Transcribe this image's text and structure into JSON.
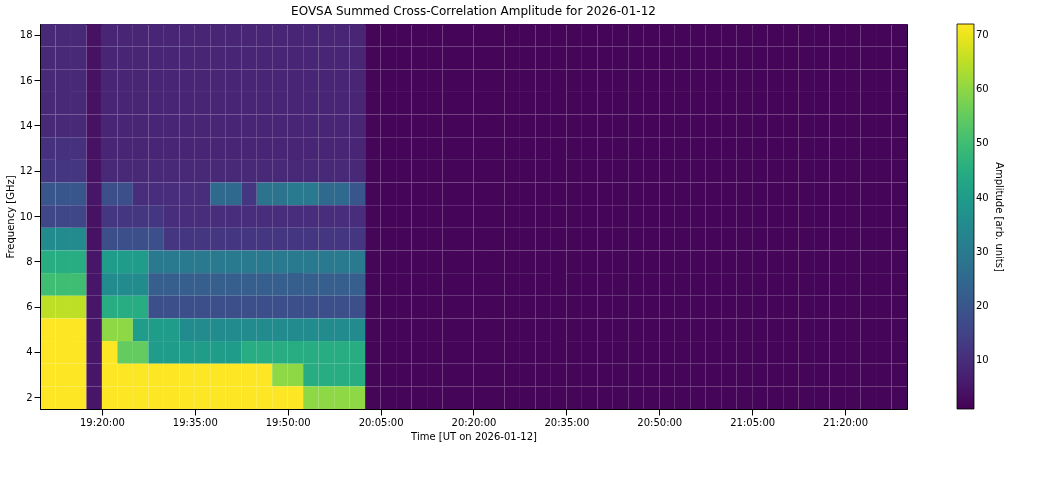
{
  "chart_data": {
    "type": "heatmap",
    "title": "EOVSA Summed Cross-Correlation Amplitude for 2026-01-12",
    "xlabel": "Time [UT on 2026-01-12]",
    "ylabel": "Frequency [GHz]",
    "clabel": "Amplitude [arb. units]",
    "x": [
      19.1875,
      19.2292,
      19.2708,
      19.3125,
      19.3542,
      19.3958,
      19.4375,
      19.4792,
      19.5208,
      19.5625,
      19.6042,
      19.6458,
      19.6875,
      19.7292,
      19.7708,
      19.8125,
      19.8542,
      19.8958,
      19.9375,
      19.9792,
      20.0208,
      20.0625,
      20.1042,
      20.1458,
      20.1875,
      20.2292,
      20.2708,
      20.3125,
      20.3542,
      20.3958,
      20.4375,
      20.4792,
      20.5208,
      20.5625,
      20.6042,
      20.6458,
      20.6875,
      20.7292,
      20.7708,
      20.8125,
      20.8542,
      20.8958,
      20.9375,
      20.9792,
      21.0208,
      21.0625,
      21.1042,
      21.1458,
      21.1875,
      21.2292,
      21.2708,
      21.3125,
      21.3542,
      21.3958,
      21.4375,
      21.4792
    ],
    "y_categories": [
      "18",
      null,
      "16",
      null,
      "14",
      null,
      "12",
      null,
      "10",
      null,
      "8",
      null,
      "6",
      null,
      "4",
      null,
      "2"
    ],
    "cells": [
      [
        9,
        9,
        9,
        4,
        8,
        8,
        8,
        8,
        8,
        8,
        8,
        8,
        8,
        8,
        8,
        8,
        8,
        8,
        8,
        8,
        8,
        2,
        2,
        2,
        2,
        2,
        2,
        2,
        2,
        2,
        2,
        2,
        2,
        2,
        2,
        2,
        2,
        2,
        2,
        2,
        2,
        2,
        2,
        2,
        2,
        2,
        2,
        2,
        2,
        2,
        2,
        2,
        2,
        2,
        2,
        2
      ],
      [
        9,
        9,
        9,
        4,
        8,
        8,
        8,
        8,
        8,
        8,
        8,
        8,
        8,
        8,
        8,
        8,
        8,
        8,
        8,
        8,
        8,
        2,
        2,
        2,
        2,
        2,
        2,
        2,
        2,
        2,
        2,
        2,
        2,
        2,
        2,
        2,
        2,
        2,
        2,
        2,
        2,
        2,
        2,
        2,
        2,
        2,
        2,
        2,
        2,
        2,
        2,
        2,
        2,
        2,
        2,
        2
      ],
      [
        9,
        9,
        9,
        4,
        8,
        8,
        8,
        8,
        8,
        8,
        8,
        8,
        8,
        8,
        8,
        8,
        8,
        8,
        8,
        8,
        8,
        2,
        2,
        2,
        2,
        2,
        2,
        2,
        2,
        2,
        2,
        2,
        2,
        2,
        2,
        2,
        2,
        2,
        2,
        2,
        2,
        2,
        2,
        2,
        2,
        2,
        2,
        2,
        2,
        2,
        2,
        2,
        2,
        2,
        2,
        2
      ],
      [
        9,
        9,
        9,
        4,
        8,
        8,
        8,
        8,
        8,
        8,
        8,
        8,
        8,
        8,
        8,
        8,
        8,
        8,
        8,
        8,
        8,
        2,
        2,
        2,
        2,
        2,
        2,
        2,
        2,
        2,
        2,
        2,
        2,
        2,
        2,
        2,
        2,
        2,
        2,
        2,
        2,
        2,
        2,
        2,
        2,
        2,
        2,
        2,
        2,
        2,
        2,
        2,
        2,
        2,
        2,
        2
      ],
      [
        9,
        9,
        9,
        4,
        8,
        8,
        8,
        8,
        8,
        8,
        8,
        8,
        8,
        8,
        8,
        8,
        8,
        8,
        8,
        8,
        8,
        2,
        2,
        2,
        2,
        2,
        2,
        2,
        2,
        2,
        2,
        2,
        2,
        2,
        2,
        2,
        2,
        2,
        2,
        2,
        2,
        2,
        2,
        2,
        2,
        2,
        2,
        2,
        2,
        2,
        2,
        2,
        2,
        2,
        2,
        2
      ],
      [
        11,
        11,
        11,
        4,
        8,
        8,
        8,
        8,
        8,
        8,
        8,
        8,
        8,
        8,
        8,
        8,
        8,
        8,
        8,
        8,
        8,
        2,
        2,
        2,
        2,
        2,
        2,
        2,
        2,
        2,
        2,
        2,
        2,
        2,
        2,
        2,
        2,
        2,
        2,
        2,
        2,
        2,
        2,
        2,
        2,
        2,
        2,
        2,
        2,
        2,
        2,
        2,
        2,
        2,
        2,
        2
      ],
      [
        12,
        12,
        12,
        4,
        9,
        9,
        9,
        9,
        9,
        9,
        9,
        9,
        9,
        9,
        9,
        9,
        9,
        9,
        9,
        9,
        9,
        2,
        2,
        2,
        2,
        2,
        2,
        2,
        2,
        2,
        2,
        2,
        2,
        2,
        2,
        2,
        2,
        2,
        2,
        2,
        2,
        2,
        2,
        2,
        2,
        2,
        2,
        2,
        2,
        2,
        2,
        2,
        2,
        2,
        2,
        2
      ],
      [
        20,
        20,
        20,
        5,
        18,
        18,
        10,
        10,
        10,
        10,
        10,
        25,
        25,
        12,
        28,
        28,
        30,
        30,
        25,
        25,
        20,
        2,
        2,
        2,
        2,
        2,
        2,
        2,
        2,
        2,
        2,
        2,
        2,
        2,
        2,
        2,
        2,
        2,
        2,
        2,
        2,
        2,
        2,
        2,
        2,
        2,
        2,
        2,
        2,
        2,
        2,
        2,
        2,
        2,
        2,
        2
      ],
      [
        16,
        16,
        16,
        4,
        12,
        12,
        12,
        12,
        10,
        10,
        10,
        10,
        10,
        10,
        10,
        10,
        10,
        10,
        10,
        10,
        10,
        2,
        2,
        2,
        2,
        2,
        2,
        2,
        2,
        2,
        2,
        2,
        2,
        2,
        2,
        2,
        2,
        2,
        2,
        2,
        2,
        2,
        2,
        2,
        2,
        2,
        2,
        2,
        2,
        2,
        2,
        2,
        2,
        2,
        2,
        2
      ],
      [
        35,
        35,
        35,
        4,
        18,
        18,
        18,
        18,
        12,
        12,
        12,
        12,
        12,
        12,
        12,
        12,
        12,
        12,
        12,
        12,
        12,
        2,
        2,
        2,
        2,
        2,
        2,
        2,
        2,
        2,
        2,
        2,
        2,
        2,
        2,
        2,
        2,
        2,
        2,
        2,
        2,
        2,
        2,
        2,
        2,
        2,
        2,
        2,
        2,
        2,
        2,
        2,
        2,
        2,
        2,
        2
      ],
      [
        45,
        45,
        45,
        5,
        40,
        40,
        40,
        30,
        30,
        30,
        30,
        30,
        30,
        30,
        30,
        30,
        30,
        30,
        30,
        30,
        30,
        2,
        2,
        2,
        2,
        2,
        2,
        2,
        2,
        2,
        2,
        2,
        2,
        2,
        2,
        2,
        2,
        2,
        2,
        2,
        2,
        2,
        2,
        2,
        2,
        2,
        2,
        2,
        2,
        2,
        2,
        2,
        2,
        2,
        2,
        2
      ],
      [
        50,
        50,
        50,
        5,
        35,
        35,
        35,
        22,
        22,
        22,
        22,
        22,
        22,
        22,
        22,
        22,
        22,
        22,
        22,
        22,
        22,
        2,
        2,
        2,
        2,
        2,
        2,
        2,
        2,
        2,
        2,
        2,
        2,
        2,
        2,
        2,
        2,
        2,
        2,
        2,
        2,
        2,
        2,
        2,
        2,
        2,
        2,
        2,
        2,
        2,
        2,
        2,
        2,
        2,
        2,
        2
      ],
      [
        65,
        65,
        65,
        5,
        45,
        45,
        45,
        18,
        18,
        18,
        18,
        18,
        18,
        18,
        18,
        18,
        18,
        18,
        18,
        18,
        18,
        2,
        2,
        2,
        2,
        2,
        2,
        2,
        2,
        2,
        2,
        2,
        2,
        2,
        2,
        2,
        2,
        2,
        2,
        2,
        2,
        2,
        2,
        2,
        2,
        2,
        2,
        2,
        2,
        2,
        2,
        2,
        2,
        2,
        2,
        2
      ],
      [
        72,
        72,
        72,
        5,
        60,
        60,
        40,
        40,
        40,
        35,
        35,
        35,
        35,
        35,
        35,
        35,
        35,
        35,
        35,
        35,
        35,
        2,
        2,
        2,
        2,
        2,
        2,
        2,
        2,
        2,
        2,
        2,
        2,
        2,
        2,
        2,
        2,
        2,
        2,
        2,
        2,
        2,
        2,
        2,
        2,
        2,
        2,
        2,
        2,
        2,
        2,
        2,
        2,
        2,
        2,
        2
      ],
      [
        72,
        72,
        72,
        5,
        72,
        55,
        55,
        40,
        40,
        40,
        40,
        40,
        40,
        45,
        45,
        45,
        45,
        45,
        45,
        45,
        45,
        2,
        2,
        2,
        2,
        2,
        2,
        2,
        2,
        2,
        2,
        2,
        2,
        2,
        2,
        2,
        2,
        2,
        2,
        2,
        2,
        2,
        2,
        2,
        2,
        2,
        2,
        2,
        2,
        2,
        2,
        2,
        2,
        2,
        2,
        2
      ],
      [
        72,
        72,
        72,
        5,
        72,
        72,
        72,
        72,
        72,
        72,
        72,
        72,
        72,
        72,
        72,
        60,
        60,
        45,
        45,
        45,
        45,
        2,
        2,
        2,
        2,
        2,
        2,
        2,
        2,
        2,
        2,
        2,
        2,
        2,
        2,
        2,
        2,
        2,
        2,
        2,
        2,
        2,
        2,
        2,
        2,
        2,
        2,
        2,
        2,
        2,
        2,
        2,
        2,
        2,
        2,
        2
      ],
      [
        72,
        72,
        72,
        5,
        72,
        72,
        72,
        72,
        72,
        72,
        72,
        72,
        72,
        72,
        72,
        72,
        72,
        60,
        60,
        60,
        60,
        2,
        2,
        2,
        2,
        2,
        2,
        2,
        2,
        2,
        2,
        2,
        2,
        2,
        2,
        2,
        2,
        2,
        2,
        2,
        2,
        2,
        2,
        2,
        2,
        2,
        2,
        2,
        2,
        2,
        2,
        2,
        2,
        2,
        2,
        2
      ]
    ],
    "xlim": [
      19.1667,
      21.5
    ],
    "xticks": [
      {
        "value": 19.3333,
        "label": "19:20:00"
      },
      {
        "value": 19.5833,
        "label": "19:35:00"
      },
      {
        "value": 19.8333,
        "label": "19:50:00"
      },
      {
        "value": 20.0833,
        "label": "20:05:00"
      },
      {
        "value": 20.3333,
        "label": "20:20:00"
      },
      {
        "value": 20.5833,
        "label": "20:35:00"
      },
      {
        "value": 20.8333,
        "label": "20:50:00"
      },
      {
        "value": 21.0833,
        "label": "21:05:00"
      },
      {
        "value": 21.3333,
        "label": "21:20:00"
      }
    ],
    "clim": [
      1,
      72
    ],
    "cticks": [
      10,
      20,
      30,
      40,
      50,
      60,
      70
    ]
  }
}
